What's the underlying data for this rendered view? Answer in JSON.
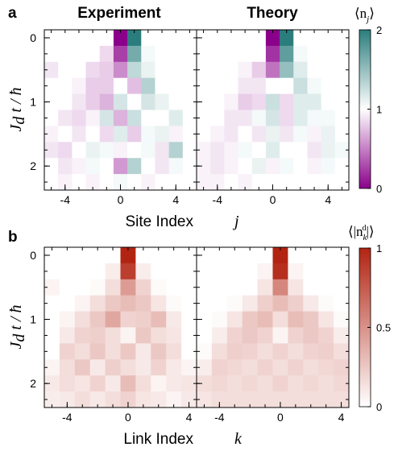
{
  "chart_data": [
    {
      "type": "heatmap",
      "panel_label": "a",
      "quantity": "⟨n_j⟩",
      "colorbar": {
        "label": "⟨n_j⟩",
        "ticks": [
          "0",
          "1",
          "2"
        ],
        "range": [
          0,
          2
        ],
        "colors": {
          "low": "#8b008b",
          "mid": "#ffffff",
          "high": "#2b7d7d"
        }
      },
      "xlabel": "Site Index  j",
      "ylabel": "J_d t / ħ",
      "x": [
        -5,
        -4,
        -3,
        -2,
        -1,
        0,
        1,
        2,
        3,
        4,
        5
      ],
      "xticks": [
        "-4",
        "0",
        "4"
      ],
      "y": [
        0,
        0.25,
        0.5,
        0.75,
        1.0,
        1.25,
        1.5,
        1.75,
        2.0,
        2.25
      ],
      "yticks": [
        "0",
        "1",
        "2"
      ],
      "subplots": [
        {
          "title": "Experiment",
          "z": [
            [
              1.0,
              1.0,
              1.0,
              1.0,
              1.0,
              0.0,
              2.0,
              1.0,
              1.0,
              1.0,
              1.0
            ],
            [
              1.0,
              1.0,
              1.0,
              1.0,
              0.85,
              0.25,
              1.65,
              1.05,
              1.0,
              1.0,
              1.0
            ],
            [
              0.9,
              1.0,
              1.0,
              0.85,
              0.8,
              0.55,
              1.3,
              1.1,
              1.0,
              1.0,
              1.0
            ],
            [
              1.0,
              1.0,
              0.95,
              0.8,
              0.8,
              1.0,
              0.75,
              1.35,
              1.0,
              1.0,
              1.0
            ],
            [
              1.0,
              1.0,
              0.9,
              0.8,
              0.7,
              1.2,
              1.0,
              1.2,
              1.1,
              1.0,
              1.0
            ],
            [
              1.0,
              0.9,
              0.85,
              0.95,
              1.2,
              0.7,
              1.25,
              1.0,
              1.0,
              1.15,
              1.0
            ],
            [
              0.95,
              1.0,
              0.9,
              1.0,
              0.85,
              1.15,
              0.8,
              1.05,
              1.1,
              0.95,
              1.0
            ],
            [
              0.9,
              0.85,
              1.0,
              1.1,
              1.05,
              0.95,
              1.0,
              1.05,
              0.9,
              1.35,
              1.0
            ],
            [
              1.0,
              0.9,
              0.95,
              1.05,
              1.0,
              0.6,
              1.35,
              1.0,
              0.9,
              1.05,
              1.0
            ],
            [
              1.0,
              0.95,
              1.0,
              0.95,
              1.0,
              1.05,
              1.0,
              0.95,
              1.0,
              1.0,
              1.0
            ]
          ]
        },
        {
          "title": "Theory",
          "z": [
            [
              1.0,
              1.0,
              1.0,
              1.0,
              1.0,
              0.0,
              2.0,
              1.0,
              1.0,
              1.0,
              1.0
            ],
            [
              1.0,
              1.0,
              1.0,
              1.0,
              1.0,
              0.2,
              1.75,
              1.05,
              1.0,
              1.0,
              1.0
            ],
            [
              1.0,
              1.0,
              1.0,
              0.95,
              0.8,
              0.45,
              1.5,
              1.15,
              1.0,
              1.0,
              1.0
            ],
            [
              1.0,
              1.0,
              1.0,
              0.9,
              0.9,
              1.0,
              1.0,
              1.25,
              1.05,
              1.0,
              1.0
            ],
            [
              1.0,
              1.0,
              0.95,
              0.8,
              0.85,
              1.25,
              0.85,
              1.15,
              1.15,
              1.0,
              1.0
            ],
            [
              1.0,
              1.0,
              0.9,
              0.9,
              1.05,
              1.2,
              0.85,
              1.15,
              1.05,
              1.05,
              1.0
            ],
            [
              1.0,
              0.95,
              0.9,
              1.0,
              0.9,
              1.1,
              0.9,
              1.05,
              0.95,
              1.1,
              1.0
            ],
            [
              0.95,
              0.9,
              0.95,
              1.05,
              1.0,
              1.15,
              1.0,
              1.0,
              0.9,
              1.1,
              1.05
            ],
            [
              0.95,
              0.9,
              0.95,
              1.0,
              1.1,
              0.95,
              1.05,
              1.0,
              0.95,
              1.05,
              1.0
            ],
            [
              0.95,
              0.95,
              1.0,
              0.95,
              1.0,
              1.0,
              1.0,
              1.0,
              1.0,
              1.0,
              1.0
            ]
          ]
        }
      ]
    },
    {
      "type": "heatmap",
      "panel_label": "b",
      "quantity": "⟨|n_k^d|⟩",
      "colorbar": {
        "label": "⟨|n_k^d|⟩",
        "ticks": [
          "0",
          "0.5",
          "1"
        ],
        "range": [
          0,
          1
        ],
        "colors": {
          "low": "#ffffff",
          "high": "#b22412"
        }
      },
      "xlabel": "Link Index  k",
      "ylabel": "J_d t / ħ",
      "x": [
        -5,
        -4,
        -3,
        -2,
        -1,
        0,
        1,
        2,
        3,
        4
      ],
      "xticks": [
        "-4",
        "0",
        "4"
      ],
      "y": [
        0,
        0.25,
        0.5,
        0.75,
        1.0,
        1.25,
        1.5,
        1.75,
        2.0,
        2.25
      ],
      "yticks": [
        "0",
        "1",
        "2"
      ],
      "subplots": [
        {
          "title": "",
          "z": [
            [
              0.0,
              0.0,
              0.0,
              0.0,
              0.0,
              1.0,
              0.0,
              0.0,
              0.0,
              0.0
            ],
            [
              0.0,
              0.0,
              0.0,
              0.0,
              0.08,
              0.88,
              0.08,
              0.0,
              0.0,
              0.0
            ],
            [
              0.05,
              0.0,
              0.0,
              0.02,
              0.15,
              0.45,
              0.2,
              0.02,
              0.0,
              0.0
            ],
            [
              0.0,
              0.0,
              0.05,
              0.15,
              0.25,
              0.3,
              0.25,
              0.12,
              0.02,
              0.0
            ],
            [
              0.0,
              0.05,
              0.15,
              0.25,
              0.4,
              0.2,
              0.22,
              0.3,
              0.1,
              0.0
            ],
            [
              0.0,
              0.1,
              0.2,
              0.22,
              0.15,
              0.05,
              0.25,
              0.15,
              0.12,
              0.0
            ],
            [
              0.0,
              0.2,
              0.15,
              0.25,
              0.15,
              0.25,
              0.1,
              0.25,
              0.15,
              0.0
            ],
            [
              0.05,
              0.15,
              0.25,
              0.1,
              0.22,
              0.15,
              0.1,
              0.2,
              0.1,
              0.05
            ],
            [
              0.1,
              0.15,
              0.12,
              0.2,
              0.1,
              0.3,
              0.15,
              0.05,
              0.1,
              0.12
            ],
            [
              0.08,
              0.1,
              0.15,
              0.1,
              0.15,
              0.2,
              0.12,
              0.1,
              0.05,
              0.1
            ]
          ]
        },
        {
          "title": "",
          "z": [
            [
              0.0,
              0.0,
              0.0,
              0.0,
              0.0,
              1.0,
              0.0,
              0.0,
              0.0,
              0.0
            ],
            [
              0.0,
              0.0,
              0.0,
              0.0,
              0.05,
              0.95,
              0.05,
              0.0,
              0.0,
              0.0
            ],
            [
              0.0,
              0.0,
              0.0,
              0.0,
              0.12,
              0.55,
              0.12,
              0.0,
              0.0,
              0.0
            ],
            [
              0.0,
              0.0,
              0.02,
              0.1,
              0.22,
              0.3,
              0.22,
              0.1,
              0.02,
              0.0
            ],
            [
              0.0,
              0.02,
              0.12,
              0.25,
              0.3,
              0.15,
              0.3,
              0.25,
              0.12,
              0.02
            ],
            [
              0.0,
              0.08,
              0.2,
              0.25,
              0.2,
              0.05,
              0.2,
              0.25,
              0.2,
              0.08
            ],
            [
              0.02,
              0.15,
              0.22,
              0.2,
              0.15,
              0.2,
              0.15,
              0.2,
              0.22,
              0.15
            ],
            [
              0.08,
              0.2,
              0.18,
              0.15,
              0.2,
              0.15,
              0.2,
              0.15,
              0.18,
              0.2
            ],
            [
              0.15,
              0.18,
              0.15,
              0.18,
              0.15,
              0.2,
              0.15,
              0.18,
              0.15,
              0.18
            ],
            [
              0.12,
              0.15,
              0.15,
              0.15,
              0.15,
              0.15,
              0.15,
              0.15,
              0.15,
              0.15
            ]
          ]
        }
      ]
    }
  ],
  "labels": {
    "panel_a": "a",
    "panel_b": "b",
    "title_experiment": "Experiment",
    "title_theory": "Theory",
    "xlabel_a_text": "Site Index",
    "xlabel_a_var": "j",
    "xlabel_b_text": "Link Index",
    "xlabel_b_var": "k",
    "ylabel_var_main": "J",
    "ylabel_var_sub": "d",
    "ylabel_rest": " t / ħ",
    "cb_a_main": "⟨n",
    "cb_a_sub": "j",
    "cb_a_close": "⟩",
    "cb_b_main": "⟨|n",
    "cb_b_sub": "k",
    "cb_b_sup": "d",
    "cb_b_close": "|⟩"
  }
}
